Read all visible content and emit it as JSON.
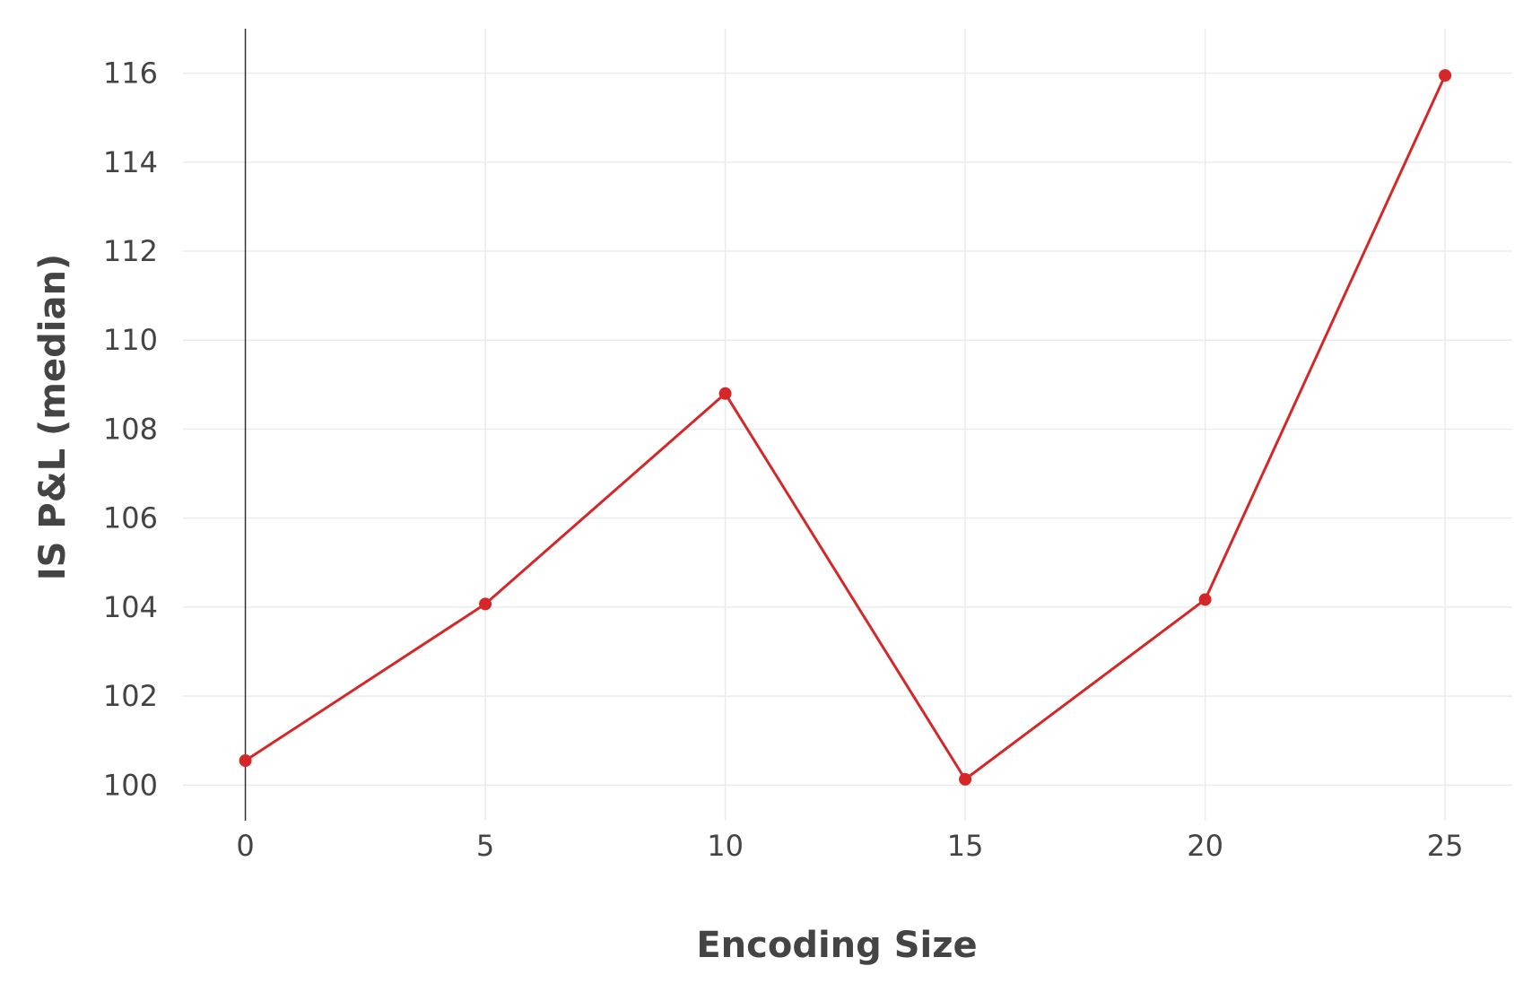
{
  "chart_data": {
    "type": "line",
    "title": "",
    "xlabel": "Encoding Size",
    "ylabel": "IS P&L (median)",
    "xlim": [
      -1.3,
      26.4
    ],
    "ylim": [
      99.2,
      117
    ],
    "x_ticks": [
      0,
      5,
      10,
      15,
      20,
      25
    ],
    "y_ticks": [
      100,
      102,
      104,
      106,
      108,
      110,
      112,
      114,
      116
    ],
    "grid": true,
    "legend": "none",
    "series": [
      {
        "color": "#d62728",
        "x": [
          0,
          5,
          10,
          15,
          20,
          25
        ],
        "y": [
          100.55,
          104.07,
          108.8,
          100.13,
          104.17,
          115.95
        ]
      }
    ]
  }
}
